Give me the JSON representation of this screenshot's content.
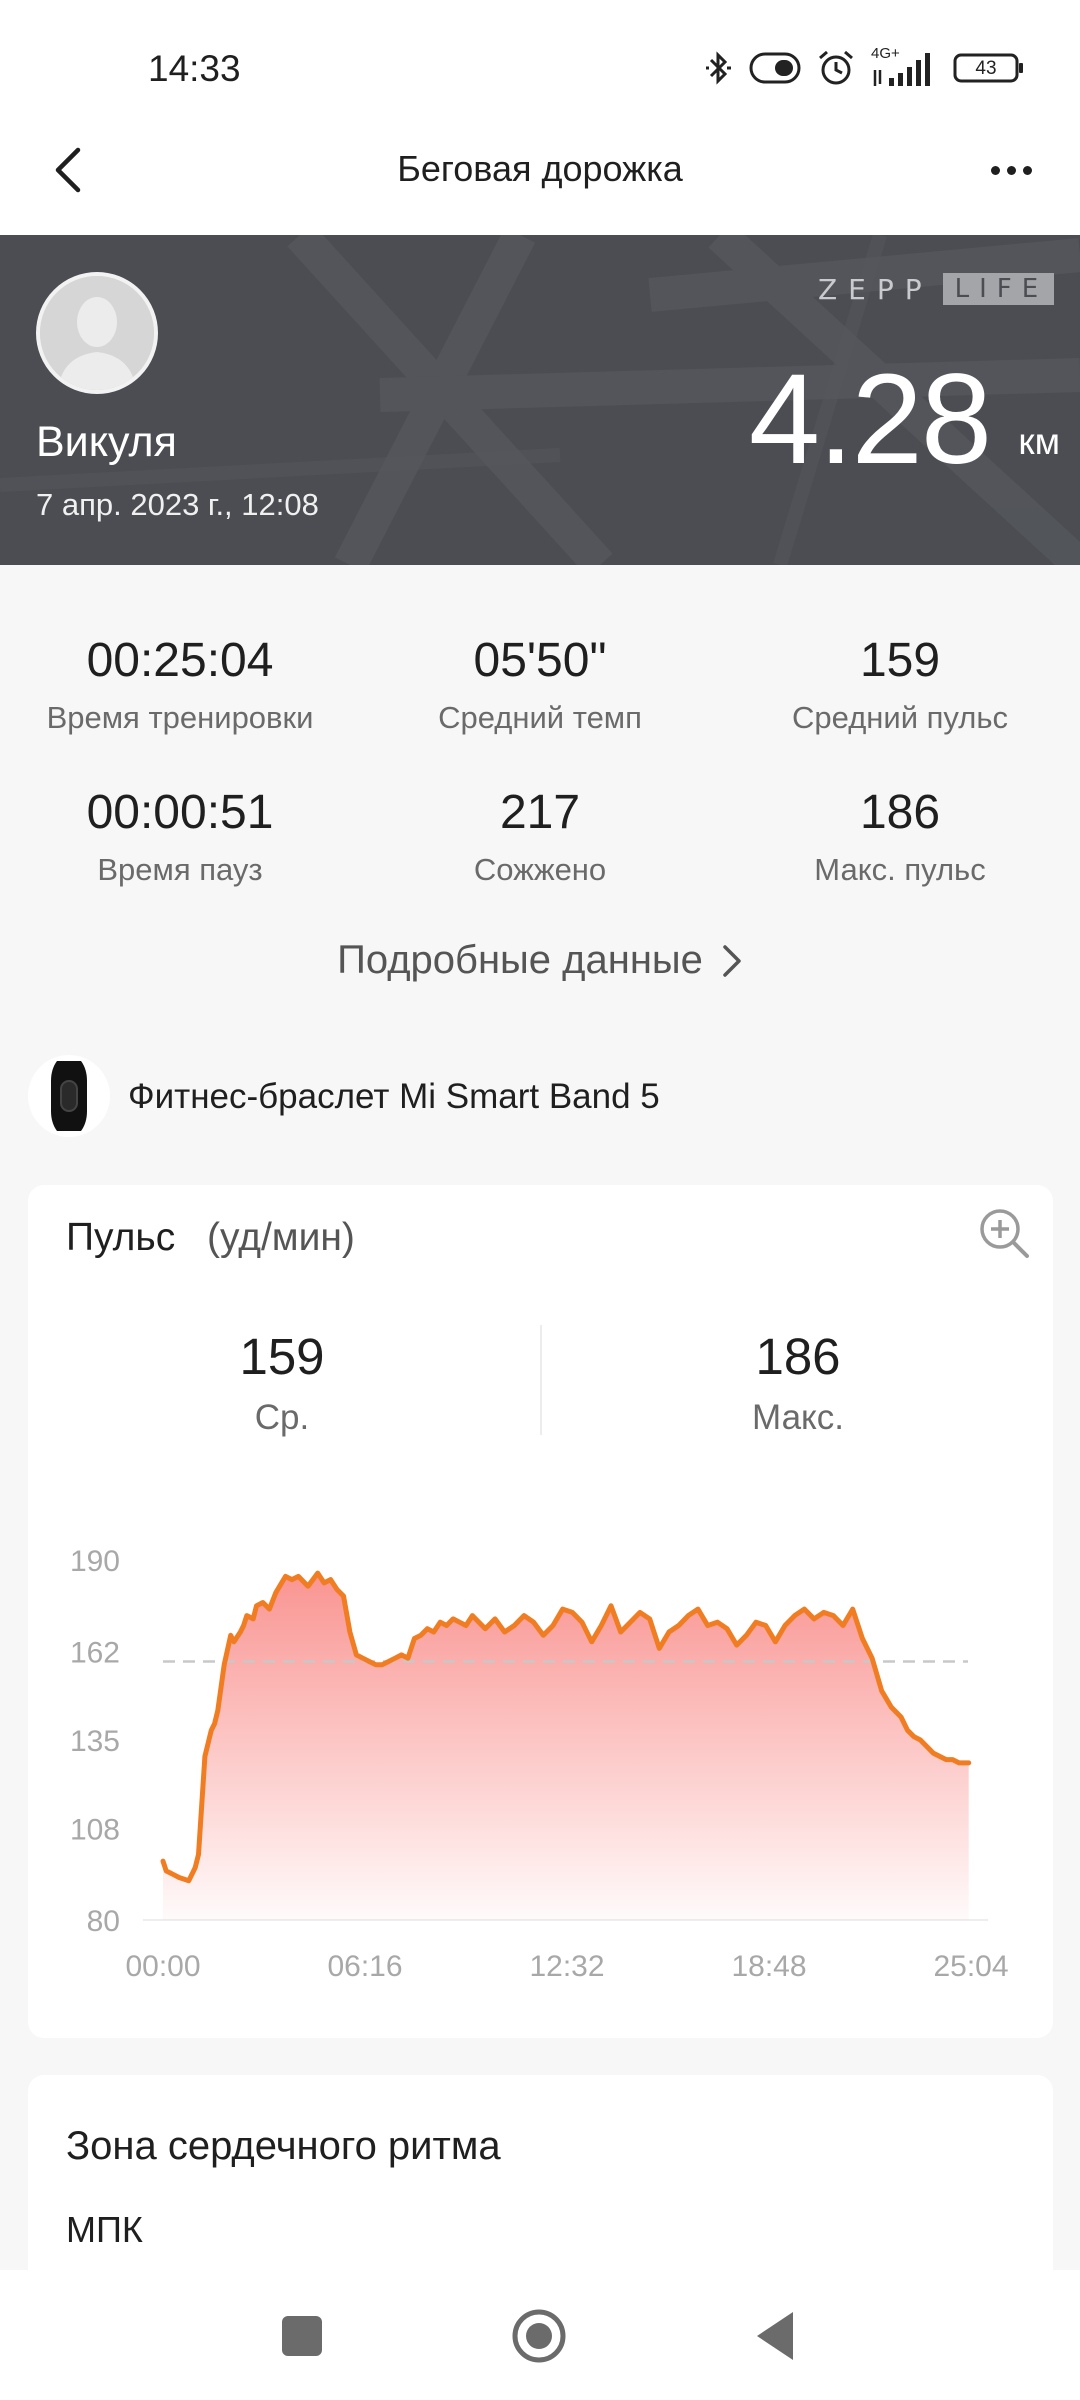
{
  "status_bar": {
    "time": "14:33",
    "network": "4G+",
    "battery": "43",
    "icons": [
      "bluetooth-icon",
      "toggle-icon",
      "alarm-icon",
      "signal-icon",
      "battery-icon"
    ]
  },
  "app_bar": {
    "title": "Беговая дорожка",
    "back_icon": "chevron-left-icon",
    "more_icon": "more-dots-icon"
  },
  "header": {
    "user_name": "Викуля",
    "date": "7 апр. 2023 г., 12:08",
    "brand_left": "ZEPP",
    "brand_right": "LIFE",
    "distance": "4.28",
    "distance_unit": "км",
    "background_color": "#4b4d52"
  },
  "stats": [
    {
      "value": "00:25:04",
      "label": "Время тренировки"
    },
    {
      "value": "05'50\"",
      "label": "Средний темп"
    },
    {
      "value": "159",
      "label": "Средний пульс"
    },
    {
      "value": "00:00:51",
      "label": "Время пауз"
    },
    {
      "value": "217",
      "label": "Сожжено"
    },
    {
      "value": "186",
      "label": "Макс. пульс"
    }
  ],
  "details_link": {
    "label": "Подробные данные"
  },
  "device": {
    "name": "Фитнес-браслет Mi Smart Band 5"
  },
  "heart_rate_card": {
    "title": "Пульс",
    "unit": "(уд/мин)",
    "avg_value": "159",
    "avg_label": "Ср.",
    "max_value": "186",
    "max_label": "Макс."
  },
  "zone_card": {
    "title": "Зона сердечного ритма",
    "subtitle": "МПК"
  },
  "colors": {
    "line": "#f07d22",
    "fill_top": "#f98f8c",
    "avg_line": "#c8c8c8"
  },
  "chart_data": {
    "type": "area",
    "x_label": "",
    "y_label": "",
    "x_range_minutes": [
      0,
      25.07
    ],
    "ylim": [
      80,
      198
    ],
    "yticks": [
      190,
      162,
      135,
      108,
      80
    ],
    "xtick_labels": [
      "00:00",
      "06:16",
      "12:32",
      "18:48",
      "25:04"
    ],
    "average_line": 159,
    "grid": false,
    "series": [
      {
        "x": [
          0,
          0.1,
          0.3,
          0.5,
          0.8,
          1.0,
          1.1,
          1.3,
          1.4,
          1.5,
          1.6,
          1.7,
          1.9,
          2.1,
          2.2,
          2.4,
          2.5,
          2.6,
          2.8,
          2.9,
          3.1,
          3.3,
          3.5,
          3.8,
          4.0,
          4.2,
          4.5,
          4.8,
          5.0,
          5.2,
          5.4,
          5.6,
          5.8,
          6.0,
          6.2,
          6.4,
          6.6,
          6.8,
          7.0,
          7.2,
          7.4,
          7.6,
          7.8,
          8.0,
          8.2,
          8.4,
          8.6,
          8.8,
          9.0,
          9.2,
          9.4,
          9.6,
          9.8,
          10.0,
          10.3,
          10.6,
          10.9,
          11.2,
          11.5,
          11.8,
          12.1,
          12.4,
          12.7,
          13.0,
          13.3,
          13.6,
          13.9,
          14.2,
          14.5,
          14.8,
          15.1,
          15.4,
          15.7,
          16.0,
          16.3,
          16.6,
          16.9,
          17.2,
          17.5,
          17.8,
          18.1,
          18.4,
          18.7,
          19.0,
          19.3,
          19.6,
          19.9,
          20.2,
          20.5,
          20.8,
          21.1,
          21.4,
          21.7,
          22.0,
          22.3,
          22.6,
          22.9,
          23.1,
          23.3,
          23.5,
          23.7,
          23.9,
          24.1,
          24.3,
          24.5,
          24.7,
          25.0
        ],
        "values": [
          98,
          95,
          94,
          93,
          92,
          96,
          100,
          130,
          134,
          138,
          140,
          144,
          158,
          167,
          165,
          168,
          170,
          173,
          172,
          176,
          177,
          175,
          180,
          185,
          184,
          185,
          182,
          186,
          183,
          184,
          181,
          179,
          168,
          161,
          160,
          159,
          158,
          158,
          159,
          160,
          161,
          160,
          166,
          167,
          169,
          168,
          171,
          170,
          172,
          171,
          170,
          173,
          171,
          169,
          172,
          168,
          170,
          173,
          171,
          167,
          170,
          175,
          174,
          171,
          165,
          170,
          176,
          168,
          171,
          174,
          172,
          163,
          168,
          170,
          173,
          175,
          170,
          171,
          169,
          164,
          167,
          171,
          170,
          165,
          170,
          173,
          175,
          172,
          174,
          173,
          170,
          175,
          166,
          160,
          150,
          145,
          142,
          138,
          136,
          135,
          133,
          131,
          130,
          129,
          129,
          128,
          128
        ]
      }
    ]
  }
}
